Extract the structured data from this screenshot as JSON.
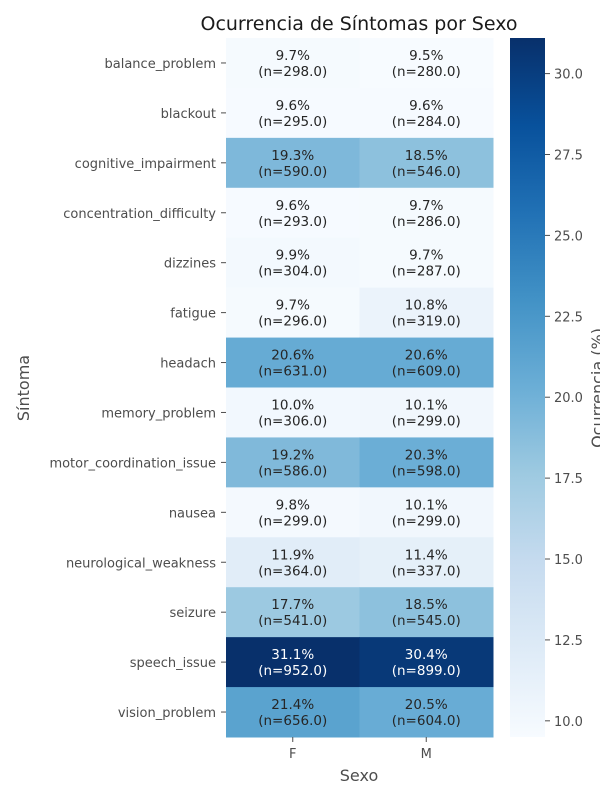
{
  "chart_data": {
    "type": "heatmap",
    "title": "Ocurrencia de Síntomas por Sexo",
    "xlabel": "Sexo",
    "ylabel": "Síntoma",
    "colorbar_label": "Ocurrencia (%)",
    "colormap": "Blues",
    "columns": [
      "F",
      "M"
    ],
    "rows": [
      "balance_problem",
      "blackout",
      "cognitive_impairment",
      "concentration_difficulty",
      "dizzines",
      "fatigue",
      "headach",
      "memory_problem",
      "motor_coordination_issue",
      "nausea",
      "neurological_weakness",
      "seizure",
      "speech_issue",
      "vision_problem"
    ],
    "values": [
      [
        9.7,
        9.5
      ],
      [
        9.6,
        9.6
      ],
      [
        19.3,
        18.5
      ],
      [
        9.6,
        9.7
      ],
      [
        9.9,
        9.7
      ],
      [
        9.7,
        10.8
      ],
      [
        20.6,
        20.6
      ],
      [
        10.0,
        10.1
      ],
      [
        19.2,
        20.3
      ],
      [
        9.8,
        10.1
      ],
      [
        11.9,
        11.4
      ],
      [
        17.7,
        18.5
      ],
      [
        31.1,
        30.4
      ],
      [
        21.4,
        20.5
      ]
    ],
    "annotations": [
      [
        "9.7%\n(n=298.0)",
        "9.5%\n(n=280.0)"
      ],
      [
        "9.6%\n(n=295.0)",
        "9.6%\n(n=284.0)"
      ],
      [
        "19.3%\n(n=590.0)",
        "18.5%\n(n=546.0)"
      ],
      [
        "9.6%\n(n=293.0)",
        "9.7%\n(n=286.0)"
      ],
      [
        "9.9%\n(n=304.0)",
        "9.7%\n(n=287.0)"
      ],
      [
        "9.7%\n(n=296.0)",
        "10.8%\n(n=319.0)"
      ],
      [
        "20.6%\n(n=631.0)",
        "20.6%\n(n=609.0)"
      ],
      [
        "10.0%\n(n=306.0)",
        "10.1%\n(n=299.0)"
      ],
      [
        "19.2%\n(n=586.0)",
        "20.3%\n(n=598.0)"
      ],
      [
        "9.8%\n(n=299.0)",
        "10.1%\n(n=299.0)"
      ],
      [
        "11.9%\n(n=364.0)",
        "11.4%\n(n=337.0)"
      ],
      [
        "17.7%\n(n=541.0)",
        "18.5%\n(n=545.0)"
      ],
      [
        "31.1%\n(n=952.0)",
        "30.4%\n(n=899.0)"
      ],
      [
        "21.4%\n(n=656.0)",
        "20.5%\n(n=604.0)"
      ]
    ],
    "vmin": 9.5,
    "vmax": 31.1,
    "colorbar_ticks": [
      10.0,
      12.5,
      15.0,
      17.5,
      20.0,
      22.5,
      25.0,
      27.5,
      30.0
    ],
    "colorbar_tick_labels": [
      "10.0",
      "12.5",
      "15.0",
      "17.5",
      "20.0",
      "22.5",
      "25.0",
      "27.5",
      "30.0"
    ],
    "grid": false,
    "legend": "colorbar-right"
  }
}
